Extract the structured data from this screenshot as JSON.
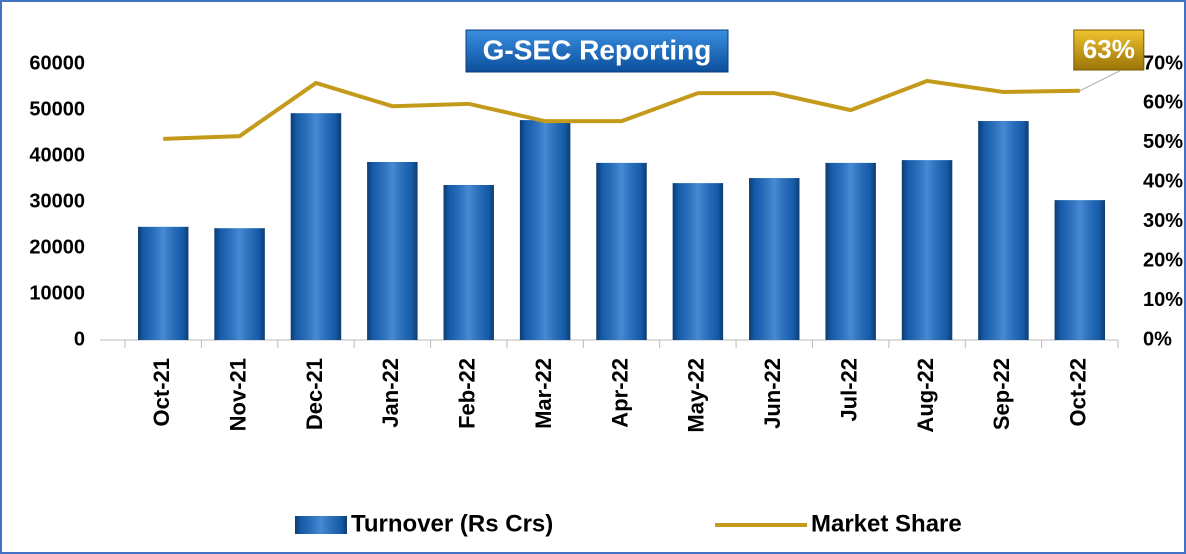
{
  "chart_data": {
    "type": "bar",
    "title": "G-SEC Reporting",
    "categories": [
      "Oct-21",
      "Nov-21",
      "Dec-21",
      "Jan-22",
      "Feb-22",
      "Mar-22",
      "Apr-22",
      "May-22",
      "Jun-22",
      "Jul-22",
      "Aug-22",
      "Sep-22",
      "Oct-22"
    ],
    "series": [
      {
        "name": "Turnover (Rs Crs)",
        "type": "bar",
        "color": "#1a6cc8",
        "values": [
          24600,
          24300,
          49300,
          38700,
          33700,
          47800,
          38500,
          34100,
          35200,
          38500,
          39100,
          47600,
          30400
        ]
      },
      {
        "name": "Market Share",
        "type": "line",
        "axis": "y2",
        "color": "#c49a1a",
        "values": [
          51.0,
          51.7,
          65.2,
          59.3,
          59.9,
          55.5,
          55.5,
          62.6,
          62.6,
          58.3,
          65.7,
          62.9,
          63.2
        ],
        "value_labels": [
          null,
          null,
          null,
          null,
          null,
          null,
          null,
          null,
          null,
          null,
          null,
          null,
          "63%"
        ]
      }
    ],
    "ylim": [
      0,
      60000
    ],
    "yticks": [
      0,
      10000,
      20000,
      30000,
      40000,
      50000,
      60000
    ],
    "y2lim": [
      0,
      70
    ],
    "y2ticks": [
      {
        "value": 0,
        "label": "0%"
      },
      {
        "value": 10,
        "label": "10%"
      },
      {
        "value": 20,
        "label": "20%"
      },
      {
        "value": 30,
        "label": "30%"
      },
      {
        "value": 40,
        "label": "40%"
      },
      {
        "value": 50,
        "label": "50%"
      },
      {
        "value": 60,
        "label": "60%"
      },
      {
        "value": 70,
        "label": "70%"
      }
    ],
    "legend": "bottom"
  }
}
